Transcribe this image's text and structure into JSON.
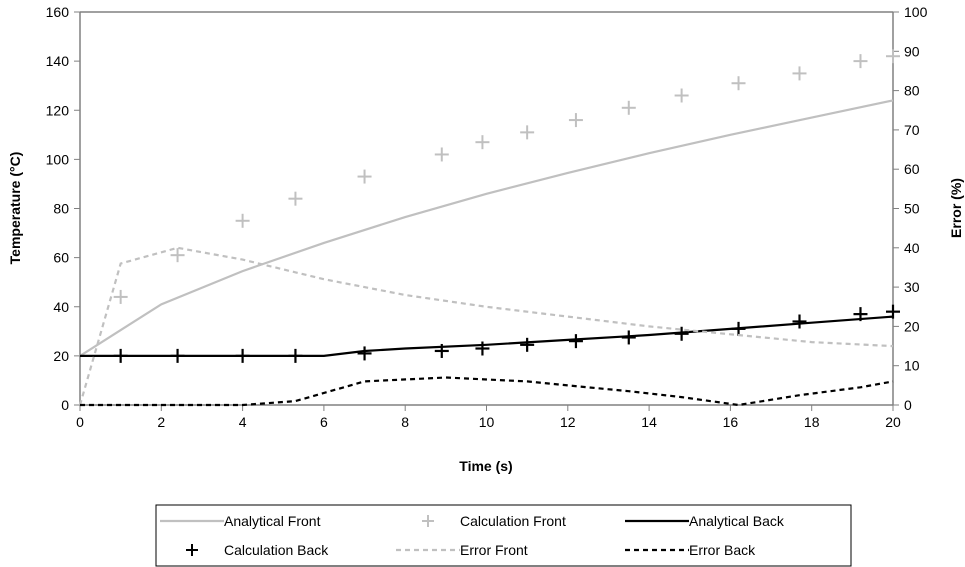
{
  "chart_data": {
    "type": "line",
    "xlabel": "Time (s)",
    "ylabel_left": "Temperature (°C)",
    "ylabel_right": "Error (%)",
    "xlim": [
      0,
      20
    ],
    "ylim_left": [
      0,
      160
    ],
    "ylim_right": [
      0,
      100
    ],
    "x_ticks": [
      0,
      2,
      4,
      6,
      8,
      10,
      12,
      14,
      16,
      18,
      20
    ],
    "y_ticks_left": [
      0,
      20,
      40,
      60,
      80,
      100,
      120,
      140,
      160
    ],
    "y_ticks_right": [
      0,
      10,
      20,
      30,
      40,
      50,
      60,
      70,
      80,
      90,
      100
    ],
    "grid": false,
    "legend_position": "bottom",
    "colors": {
      "light": "#c0c0c0",
      "dark": "#000000",
      "axis": "#808080"
    },
    "series": [
      {
        "name": "Analytical Front",
        "axis": "left",
        "style": "solid",
        "color": "light",
        "x": [
          0,
          2,
          4,
          6,
          8,
          10,
          12,
          14,
          16,
          18,
          20
        ],
        "y": [
          20,
          41,
          54.5,
          66,
          76.5,
          86,
          94.5,
          102.5,
          110,
          117,
          124
        ]
      },
      {
        "name": "Calculation Front",
        "axis": "left",
        "style": "marker-plus",
        "color": "light",
        "x": [
          1.0,
          2.4,
          4.0,
          5.3,
          7.0,
          8.9,
          9.9,
          11.0,
          12.2,
          13.5,
          14.8,
          16.2,
          17.7,
          19.2,
          20
        ],
        "y": [
          44,
          61,
          75,
          84,
          93,
          102,
          107,
          111,
          116,
          121,
          126,
          131,
          135,
          140,
          142
        ]
      },
      {
        "name": "Analytical Back",
        "axis": "left",
        "style": "solid",
        "color": "dark",
        "x": [
          0,
          2,
          4,
          6,
          7,
          8,
          10,
          12,
          14,
          16,
          18,
          20
        ],
        "y": [
          20,
          20,
          20,
          20,
          22,
          23,
          24.5,
          26.5,
          28.5,
          31,
          33.5,
          36
        ]
      },
      {
        "name": "Calculation Back",
        "axis": "left",
        "style": "marker-plus",
        "color": "dark",
        "x": [
          1.0,
          2.4,
          4.0,
          5.3,
          7.0,
          8.9,
          9.9,
          11.0,
          12.2,
          13.5,
          14.8,
          16.2,
          17.7,
          19.2,
          20
        ],
        "y": [
          20,
          20,
          20,
          20,
          21,
          22,
          23,
          24.5,
          26,
          27.5,
          29,
          31,
          34,
          37,
          38
        ]
      },
      {
        "name": "Error Front",
        "axis": "right",
        "style": "dashed",
        "color": "light",
        "x": [
          0,
          1.0,
          2.4,
          4.0,
          6,
          8,
          10,
          12,
          14,
          16,
          18,
          20
        ],
        "y": [
          0,
          36,
          40,
          37,
          32,
          28,
          25,
          22.5,
          20,
          18,
          16,
          15
        ]
      },
      {
        "name": "Error Back",
        "axis": "right",
        "style": "dashed",
        "color": "dark",
        "x": [
          0,
          2,
          4,
          5.3,
          7,
          9,
          10,
          11,
          12,
          13.5,
          14.8,
          16.2,
          17.7,
          19.2,
          20
        ],
        "y": [
          0,
          0,
          0,
          1,
          6,
          7,
          6.5,
          6,
          5,
          3.5,
          2,
          0,
          2.5,
          4.5,
          6
        ]
      }
    ]
  }
}
